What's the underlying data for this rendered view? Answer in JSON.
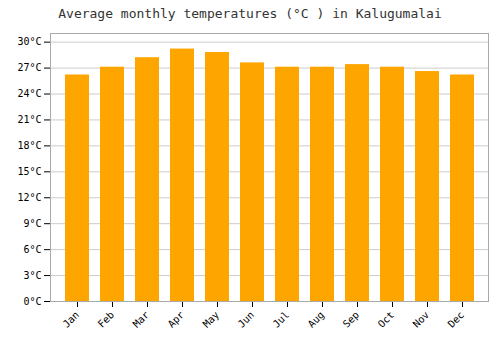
{
  "chart_data": {
    "type": "bar",
    "title": "Average monthly temperatures (°C ) in Kalugumalai",
    "categories": [
      "Jan",
      "Feb",
      "Mar",
      "Apr",
      "May",
      "Jun",
      "Jul",
      "Aug",
      "Sep",
      "Oct",
      "Nov",
      "Dec"
    ],
    "values": [
      26.2,
      27.1,
      28.2,
      29.2,
      28.8,
      27.6,
      27.1,
      27.1,
      27.4,
      27.1,
      26.6,
      26.2
    ],
    "color": "#FFA500",
    "ylim": [
      0,
      31
    ],
    "yticks": [
      {
        "value": 0,
        "label": "0°C"
      },
      {
        "value": 3,
        "label": "3°C"
      },
      {
        "value": 6,
        "label": "6°C"
      },
      {
        "value": 9,
        "label": "9°C"
      },
      {
        "value": 12,
        "label": "12°C"
      },
      {
        "value": 15,
        "label": "15°C"
      },
      {
        "value": 18,
        "label": "18°C"
      },
      {
        "value": 21,
        "label": "21°C"
      },
      {
        "value": 24,
        "label": "24°C"
      },
      {
        "value": 27,
        "label": "27°C"
      },
      {
        "value": 30,
        "label": "30°C"
      }
    ],
    "grid": true
  }
}
